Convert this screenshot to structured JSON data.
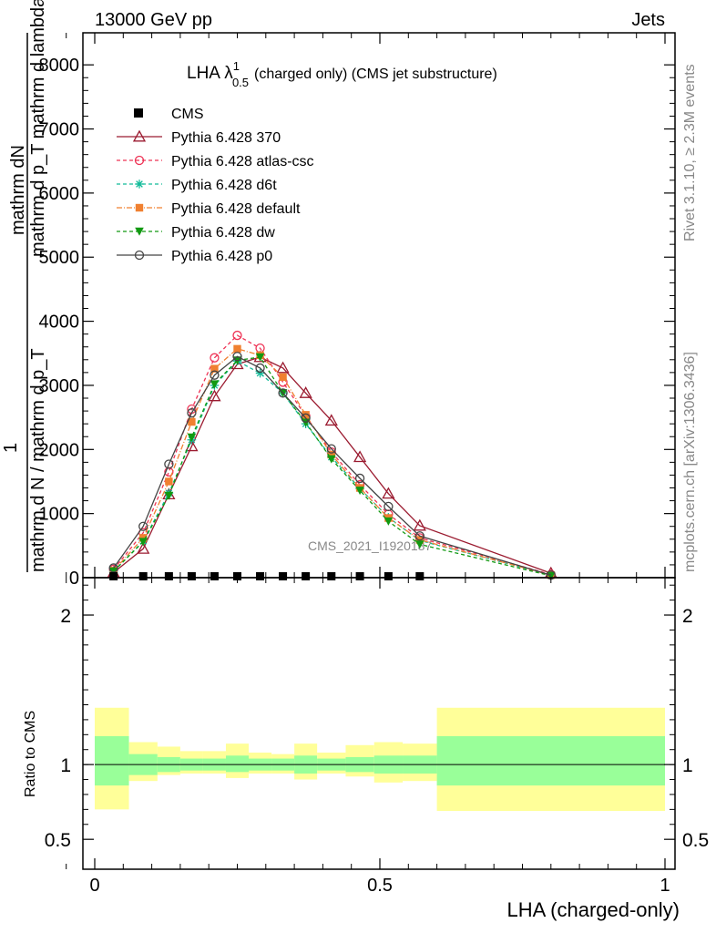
{
  "header": {
    "left": "13000 GeV pp",
    "right": "Jets"
  },
  "side_labels": {
    "rivet": "Rivet 3.1.10, ≥ 2.3M events",
    "mcplots": "mcplots.cern.ch [arXiv:1306.3436]"
  },
  "watermark": "CMS_2021_I1920187",
  "colors": {
    "CMS": "#000000",
    "Pythia 6.428 370": "#9b1b30",
    "Pythia 6.428 atlas-csc": "#ee3355",
    "Pythia 6.428 d6t": "#11bb99",
    "Pythia 6.428 default": "#f08030",
    "Pythia 6.428 dw": "#119911",
    "Pythia 6.428 p0": "#444444",
    "band_inner": "#99ff99",
    "band_outer": "#ffff99"
  },
  "chart_data": [
    {
      "type": "line",
      "title_main": "LHA λ",
      "title_sup": "1",
      "title_sub": "0.5",
      "title_rest": "(charged only) (CMS jet substructure)",
      "ylabel_top": "mathrm dN",
      "ylabel_mid": "mathrm d p_T mathrm d lambda",
      "ylabel_one": "1",
      "ylabel_bottom": "mathrm d N / mathrm d p_T",
      "xlim": [
        -0.05,
        1.0
      ],
      "ylim": [
        0,
        8500
      ],
      "yticks": [
        0,
        1000,
        2000,
        3000,
        4000,
        5000,
        6000,
        7000,
        8000
      ],
      "legend_position": "top-left",
      "legend": [
        "CMS",
        "Pythia 6.428 370",
        "Pythia 6.428 atlas-csc",
        "Pythia 6.428 d6t",
        "Pythia 6.428 default",
        "Pythia 6.428 dw",
        "Pythia 6.428 p0"
      ],
      "cms": {
        "x": [
          0.033,
          0.085,
          0.13,
          0.17,
          0.21,
          0.25,
          0.29,
          0.33,
          0.37,
          0.415,
          0.465,
          0.515,
          0.57
        ],
        "y": [
          0,
          0,
          0,
          0,
          0,
          0,
          0,
          0,
          0,
          0,
          0,
          0,
          0
        ]
      },
      "series": [
        {
          "name": "Pythia 6.428 370",
          "marker": "triangle-open",
          "dash": "solid",
          "x": [
            0.033,
            0.085,
            0.13,
            0.17,
            0.21,
            0.25,
            0.29,
            0.33,
            0.37,
            0.415,
            0.465,
            0.515,
            0.57,
            0.8
          ],
          "y": [
            80,
            450,
            1300,
            2050,
            2830,
            3330,
            3440,
            3270,
            2880,
            2450,
            1880,
            1310,
            810,
            70
          ]
        },
        {
          "name": "Pythia 6.428 atlas-csc",
          "marker": "circle-open",
          "dash": "4,3",
          "x": [
            0.033,
            0.085,
            0.13,
            0.17,
            0.21,
            0.25,
            0.29,
            0.33,
            0.37,
            0.415,
            0.465,
            0.515,
            0.57,
            0.8
          ],
          "y": [
            130,
            700,
            1650,
            2630,
            3430,
            3780,
            3580,
            3050,
            2520,
            1960,
            1450,
            990,
            620,
            50
          ]
        },
        {
          "name": "Pythia 6.428 d6t",
          "marker": "star",
          "dash": "4,3",
          "x": [
            0.033,
            0.085,
            0.13,
            0.17,
            0.21,
            0.25,
            0.29,
            0.33,
            0.37,
            0.415,
            0.465,
            0.515,
            0.57,
            0.8
          ],
          "y": [
            100,
            570,
            1320,
            2150,
            3000,
            3380,
            3190,
            2880,
            2400,
            1880,
            1390,
            940,
            580,
            40
          ]
        },
        {
          "name": "Pythia 6.428 default",
          "marker": "square",
          "dash": "6,2,1,2",
          "x": [
            0.033,
            0.085,
            0.13,
            0.17,
            0.21,
            0.25,
            0.29,
            0.33,
            0.37,
            0.415,
            0.465,
            0.515,
            0.57,
            0.8
          ],
          "y": [
            110,
            620,
            1500,
            2430,
            3260,
            3570,
            3470,
            3130,
            2540,
            1920,
            1400,
            930,
            590,
            40
          ]
        },
        {
          "name": "Pythia 6.428 dw",
          "marker": "triangle-down",
          "dash": "4,3",
          "x": [
            0.033,
            0.085,
            0.13,
            0.17,
            0.21,
            0.25,
            0.29,
            0.33,
            0.37,
            0.415,
            0.465,
            0.515,
            0.57,
            0.8
          ],
          "y": [
            100,
            560,
            1280,
            2190,
            3020,
            3390,
            3440,
            2880,
            2420,
            1850,
            1360,
            880,
            520,
            30
          ]
        },
        {
          "name": "Pythia 6.428 p0",
          "marker": "circle-open",
          "dash": "solid",
          "x": [
            0.033,
            0.085,
            0.13,
            0.17,
            0.21,
            0.25,
            0.29,
            0.33,
            0.37,
            0.415,
            0.465,
            0.515,
            0.57,
            0.8
          ],
          "y": [
            150,
            800,
            1770,
            2570,
            3160,
            3450,
            3270,
            2880,
            2490,
            2010,
            1550,
            1110,
            650,
            40
          ]
        }
      ]
    },
    {
      "type": "area",
      "ylabel": "Ratio to CMS",
      "xlabel": "LHA (charged-only)",
      "xlim": [
        -0.05,
        1.0
      ],
      "ylim": [
        0.3,
        2.25
      ],
      "xticks": [
        0,
        0.5,
        1
      ],
      "xticklabels": [
        "0",
        "0.5",
        "1"
      ],
      "yticks": [
        0.5,
        1,
        2
      ],
      "yticklabels": [
        "0.5",
        "1",
        "2"
      ],
      "bins": [
        {
          "lo": 0.0,
          "hi": 0.06,
          "inner": [
            0.86,
            1.19
          ],
          "outer": [
            0.7,
            1.38
          ]
        },
        {
          "lo": 0.06,
          "hi": 0.11,
          "inner": [
            0.93,
            1.07
          ],
          "outer": [
            0.89,
            1.15
          ]
        },
        {
          "lo": 0.11,
          "hi": 0.15,
          "inner": [
            0.95,
            1.05
          ],
          "outer": [
            0.93,
            1.12
          ]
        },
        {
          "lo": 0.15,
          "hi": 0.19,
          "inner": [
            0.96,
            1.04
          ],
          "outer": [
            0.94,
            1.09
          ]
        },
        {
          "lo": 0.19,
          "hi": 0.23,
          "inner": [
            0.96,
            1.04
          ],
          "outer": [
            0.94,
            1.09
          ]
        },
        {
          "lo": 0.23,
          "hi": 0.27,
          "inner": [
            0.95,
            1.06
          ],
          "outer": [
            0.91,
            1.14
          ]
        },
        {
          "lo": 0.27,
          "hi": 0.31,
          "inner": [
            0.96,
            1.04
          ],
          "outer": [
            0.94,
            1.08
          ]
        },
        {
          "lo": 0.31,
          "hi": 0.35,
          "inner": [
            0.96,
            1.04
          ],
          "outer": [
            0.94,
            1.07
          ]
        },
        {
          "lo": 0.35,
          "hi": 0.39,
          "inner": [
            0.94,
            1.06
          ],
          "outer": [
            0.9,
            1.14
          ]
        },
        {
          "lo": 0.39,
          "hi": 0.44,
          "inner": [
            0.96,
            1.04
          ],
          "outer": [
            0.94,
            1.08
          ]
        },
        {
          "lo": 0.44,
          "hi": 0.49,
          "inner": [
            0.95,
            1.05
          ],
          "outer": [
            0.92,
            1.13
          ]
        },
        {
          "lo": 0.49,
          "hi": 0.54,
          "inner": [
            0.94,
            1.06
          ],
          "outer": [
            0.88,
            1.15
          ]
        },
        {
          "lo": 0.54,
          "hi": 0.6,
          "inner": [
            0.94,
            1.06
          ],
          "outer": [
            0.89,
            1.14
          ]
        },
        {
          "lo": 0.6,
          "hi": 1.0,
          "inner": [
            0.86,
            1.19
          ],
          "outer": [
            0.69,
            1.38
          ]
        }
      ],
      "reference": 1
    }
  ]
}
